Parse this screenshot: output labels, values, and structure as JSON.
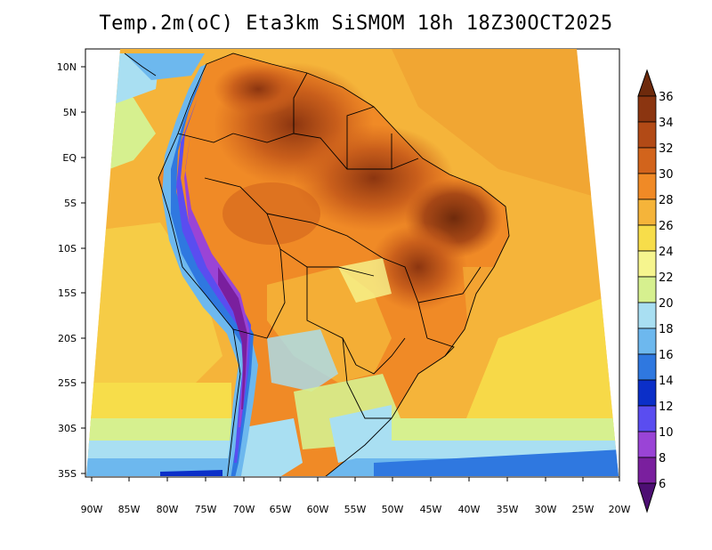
{
  "title": "Temp.2m(oC) Eta3km SiSMOM 18h 18Z30OCT2025",
  "lat_labels": [
    "10N",
    "5N",
    "EQ",
    "5S",
    "10S",
    "15S",
    "20S",
    "25S",
    "30S",
    "35S"
  ],
  "lon_labels": [
    "90W",
    "85W",
    "80W",
    "75W",
    "70W",
    "65W",
    "60W",
    "55W",
    "50W",
    "45W",
    "40W",
    "35W",
    "30W",
    "25W",
    "20W"
  ],
  "colorbar": {
    "labels": [
      "36",
      "34",
      "32",
      "30",
      "28",
      "26",
      "24",
      "22",
      "20",
      "18",
      "16",
      "14",
      "12",
      "10",
      "8",
      "6"
    ],
    "colors": [
      "#6e2a0c",
      "#8b3510",
      "#b24a16",
      "#d2641c",
      "#f08a26",
      "#f5b43a",
      "#f7dd4a",
      "#f6f58e",
      "#d6f08f",
      "#a9dff2",
      "#6db8ee",
      "#2f78e0",
      "#0b2fc8",
      "#5a4df0",
      "#9a44d6",
      "#7a1f9e",
      "#4d0f73"
    ]
  }
}
